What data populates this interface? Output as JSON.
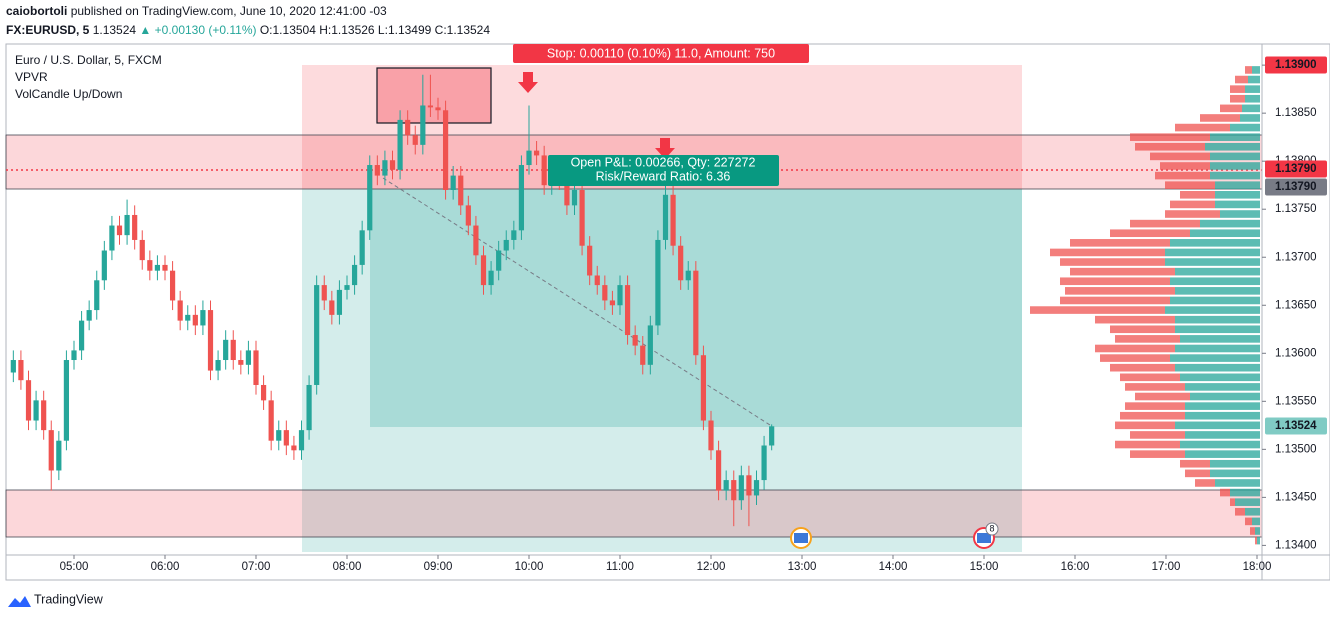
{
  "header": {
    "author": "caiobortoli",
    "published": "published on TradingView.com, June 10, 2020 12:41:00 -03",
    "symbol": "FX:EURUSD, 5",
    "last": 1.13524,
    "change": "▲ +0.00130 (+0.11%)",
    "ohlc": "O:1.13504 H:1.13526 L:1.13499 C:1.13524"
  },
  "legend": [
    "Euro / U.S. Dollar, 5, FXCM",
    "VPVR",
    "VolCandle Up/Down"
  ],
  "position": {
    "stop_label": "Stop: 0.00110 (0.10%) 11.0, Amount: 750",
    "pnl_label": "Open P&L: 0.00266, Qty: 227272",
    "rr_label": "Risk/Reward Ratio: 6.36"
  },
  "events": [
    "8"
  ],
  "price_labels": [
    {
      "label": "1.13900",
      "color": "#f23645"
    },
    {
      "label": "1.13790",
      "color": "#f23645"
    },
    {
      "label": "1.13790",
      "color": "#787b86"
    },
    {
      "label": "1.13524",
      "color": "#80cbc4"
    }
  ],
  "footer": {
    "brand": "TradingView"
  },
  "chart_data": {
    "type": "candlestick",
    "up_color": "#26a69a",
    "down_color": "#ef5350",
    "x": [
      "04:20",
      "04:25",
      "04:30",
      "04:35",
      "04:40",
      "04:45",
      "04:50",
      "04:55",
      "05:00",
      "05:05",
      "05:10",
      "05:15",
      "05:20",
      "05:25",
      "05:30",
      "05:35",
      "05:40",
      "05:45",
      "05:50",
      "05:55",
      "06:00",
      "06:05",
      "06:10",
      "06:15",
      "06:20",
      "06:25",
      "06:30",
      "06:35",
      "06:40",
      "06:45",
      "06:50",
      "06:55",
      "07:00",
      "07:05",
      "07:10",
      "07:15",
      "07:20",
      "07:25",
      "07:30",
      "07:35",
      "07:40",
      "07:45",
      "07:50",
      "07:55",
      "08:00",
      "08:05",
      "08:10",
      "08:15",
      "08:20",
      "08:25",
      "08:30",
      "08:35",
      "08:40",
      "08:45",
      "08:50",
      "08:55",
      "09:00",
      "09:05",
      "09:10",
      "09:15",
      "09:20",
      "09:25",
      "09:30",
      "09:35",
      "09:40",
      "09:45",
      "09:50",
      "09:55",
      "10:00",
      "10:05",
      "10:10",
      "10:15",
      "10:20",
      "10:25",
      "10:30",
      "10:35",
      "10:40",
      "10:45",
      "10:50",
      "10:55",
      "11:00",
      "11:05",
      "11:10",
      "11:15",
      "11:20",
      "11:25",
      "11:30",
      "11:35",
      "11:40",
      "11:45",
      "11:50",
      "11:55",
      "12:00",
      "12:05",
      "12:10",
      "12:15",
      "12:20",
      "12:25",
      "12:30",
      "12:35",
      "12:40"
    ],
    "open": [
      1.1358,
      1.13593,
      1.13572,
      1.1353,
      1.13551,
      1.1352,
      1.13478,
      1.13509,
      1.13593,
      1.13603,
      1.13634,
      1.13645,
      1.13676,
      1.13707,
      1.13733,
      1.13723,
      1.13744,
      1.13718,
      1.13697,
      1.13686,
      1.13692,
      1.13686,
      1.13655,
      1.13634,
      1.1364,
      1.13629,
      1.13645,
      1.13582,
      1.13593,
      1.13614,
      1.13593,
      1.13588,
      1.13603,
      1.13567,
      1.13551,
      1.13509,
      1.1352,
      1.13504,
      1.13499,
      1.1352,
      1.13567,
      1.13671,
      1.13655,
      1.1364,
      1.13666,
      1.13671,
      1.13692,
      1.13728,
      1.13796,
      1.13785,
      1.13801,
      1.13791,
      1.13843,
      1.13827,
      1.13817,
      1.13858,
      1.13856,
      1.13853,
      1.1377,
      1.13785,
      1.13754,
      1.13733,
      1.13702,
      1.13671,
      1.13686,
      1.13707,
      1.13718,
      1.13728,
      1.13796,
      1.13811,
      1.13806,
      1.13775,
      1.13796,
      1.1378,
      1.13754,
      1.1377,
      1.13712,
      1.13681,
      1.13671,
      1.13655,
      1.1365,
      1.13671,
      1.13619,
      1.13608,
      1.13588,
      1.13629,
      1.13718,
      1.13765,
      1.13712,
      1.13676,
      1.13686,
      1.13598,
      1.1353,
      1.13499,
      1.13457,
      1.13468,
      1.13447,
      1.13473,
      1.13452,
      1.13468,
      1.13504
    ],
    "high": [
      1.13603,
      1.13603,
      1.13582,
      1.13561,
      1.13561,
      1.1353,
      1.13519,
      1.13603,
      1.13613,
      1.13644,
      1.13655,
      1.13686,
      1.13717,
      1.13743,
      1.13743,
      1.1376,
      1.13754,
      1.13728,
      1.13707,
      1.13702,
      1.13702,
      1.13696,
      1.13665,
      1.1365,
      1.1365,
      1.13655,
      1.13655,
      1.13603,
      1.13624,
      1.13624,
      1.13603,
      1.13613,
      1.13613,
      1.13577,
      1.13561,
      1.1353,
      1.1353,
      1.13514,
      1.1353,
      1.13577,
      1.13681,
      1.13681,
      1.13665,
      1.13676,
      1.13681,
      1.13702,
      1.13738,
      1.13806,
      1.13806,
      1.13811,
      1.13811,
      1.13853,
      1.13853,
      1.13837,
      1.1389,
      1.1389,
      1.13866,
      1.13863,
      1.13795,
      1.13795,
      1.13764,
      1.13743,
      1.13712,
      1.13696,
      1.13717,
      1.13728,
      1.13738,
      1.13806,
      1.13858,
      1.13821,
      1.13816,
      1.13806,
      1.13806,
      1.1379,
      1.1378,
      1.1378,
      1.13722,
      1.13691,
      1.13681,
      1.13665,
      1.13681,
      1.13681,
      1.13629,
      1.13618,
      1.13639,
      1.13728,
      1.13775,
      1.13775,
      1.13722,
      1.13696,
      1.13696,
      1.13608,
      1.1354,
      1.13509,
      1.13478,
      1.13478,
      1.13483,
      1.13483,
      1.13478,
      1.13514,
      1.13526
    ],
    "low": [
      1.1357,
      1.13562,
      1.1352,
      1.1352,
      1.1351,
      1.13457,
      1.13468,
      1.13499,
      1.13583,
      1.13593,
      1.13624,
      1.13635,
      1.13666,
      1.13697,
      1.13713,
      1.13713,
      1.13708,
      1.13687,
      1.13676,
      1.13676,
      1.13676,
      1.13645,
      1.13624,
      1.13624,
      1.13619,
      1.13619,
      1.13572,
      1.13572,
      1.13583,
      1.13583,
      1.13578,
      1.13578,
      1.13557,
      1.13541,
      1.13499,
      1.13499,
      1.13494,
      1.13489,
      1.13489,
      1.1351,
      1.13557,
      1.13645,
      1.1363,
      1.1363,
      1.13656,
      1.13661,
      1.13682,
      1.13718,
      1.13775,
      1.13775,
      1.13781,
      1.13781,
      1.13817,
      1.13807,
      1.13807,
      1.13846,
      1.13843,
      1.1376,
      1.1376,
      1.13744,
      1.13723,
      1.13692,
      1.13661,
      1.13661,
      1.13676,
      1.13697,
      1.13708,
      1.13718,
      1.13786,
      1.13796,
      1.13765,
      1.13765,
      1.1377,
      1.13744,
      1.13744,
      1.13702,
      1.13671,
      1.13661,
      1.13645,
      1.1364,
      1.1364,
      1.13609,
      1.13598,
      1.13578,
      1.13578,
      1.13619,
      1.13708,
      1.13702,
      1.13666,
      1.13666,
      1.13588,
      1.1352,
      1.13489,
      1.13447,
      1.13447,
      1.1342,
      1.13437,
      1.1342,
      1.13442,
      1.13458,
      1.13499
    ],
    "close": [
      1.13593,
      1.13572,
      1.1353,
      1.13551,
      1.1352,
      1.13478,
      1.13509,
      1.13593,
      1.13603,
      1.13634,
      1.13645,
      1.13676,
      1.13707,
      1.13733,
      1.13723,
      1.13744,
      1.13718,
      1.13697,
      1.13686,
      1.13692,
      1.13686,
      1.13655,
      1.13634,
      1.1364,
      1.13629,
      1.13645,
      1.13582,
      1.13593,
      1.13614,
      1.13593,
      1.13588,
      1.13603,
      1.13567,
      1.13551,
      1.13509,
      1.1352,
      1.13504,
      1.13499,
      1.1352,
      1.13567,
      1.13671,
      1.13655,
      1.1364,
      1.13666,
      1.13671,
      1.13692,
      1.13728,
      1.13796,
      1.13785,
      1.13801,
      1.13791,
      1.13843,
      1.13827,
      1.13817,
      1.13858,
      1.13856,
      1.13853,
      1.1377,
      1.13785,
      1.13754,
      1.13733,
      1.13702,
      1.13671,
      1.13686,
      1.13707,
      1.13718,
      1.13728,
      1.13796,
      1.13811,
      1.13806,
      1.13775,
      1.13796,
      1.1378,
      1.13754,
      1.1377,
      1.13712,
      1.13681,
      1.13671,
      1.13655,
      1.1365,
      1.13671,
      1.13619,
      1.13608,
      1.13588,
      1.13629,
      1.13718,
      1.13765,
      1.13712,
      1.13676,
      1.13686,
      1.13598,
      1.1353,
      1.13499,
      1.13457,
      1.13468,
      1.13447,
      1.13473,
      1.13452,
      1.13468,
      1.13504,
      1.13524
    ],
    "xticks": [
      "05:00",
      "06:00",
      "07:00",
      "08:00",
      "09:00",
      "10:00",
      "11:00",
      "12:00",
      "13:00",
      "14:00",
      "15:00",
      "16:00",
      "17:00",
      "18:00"
    ],
    "ylim": [
      1.1339,
      1.13922
    ],
    "yticks": [
      {
        "value": 1.134,
        "label": "1.13400"
      },
      {
        "value": 1.1345,
        "label": "1.13450"
      },
      {
        "value": 1.135,
        "label": "1.13500"
      },
      {
        "value": 1.1355,
        "label": "1.13550"
      },
      {
        "value": 1.136,
        "label": "1.13600"
      },
      {
        "value": 1.1365,
        "label": "1.13650"
      },
      {
        "value": 1.137,
        "label": "1.13700"
      },
      {
        "value": 1.1375,
        "label": "1.13750"
      },
      {
        "value": 1.138,
        "label": "1.13800"
      },
      {
        "value": 1.1385,
        "label": "1.13850"
      },
      {
        "value": 1.139,
        "label": "1.13900"
      }
    ],
    "volume_profile": {
      "up_color": "#26a69a",
      "down_color": "#ef5350",
      "prices": [
        1.13895,
        1.13885,
        1.13875,
        1.13865,
        1.13855,
        1.13845,
        1.13835,
        1.13825,
        1.13815,
        1.13805,
        1.13795,
        1.13785,
        1.13775,
        1.13765,
        1.13755,
        1.13745,
        1.13735,
        1.13725,
        1.13715,
        1.13705,
        1.13695,
        1.13685,
        1.13675,
        1.13665,
        1.13655,
        1.13645,
        1.13635,
        1.13625,
        1.13615,
        1.13605,
        1.13595,
        1.13585,
        1.13575,
        1.13565,
        1.13555,
        1.13545,
        1.13535,
        1.13525,
        1.13515,
        1.13505,
        1.13495,
        1.13485,
        1.13475,
        1.13465,
        1.13455,
        1.13445,
        1.13435,
        1.13425,
        1.13415,
        1.13405
      ],
      "up": [
        8,
        12,
        15,
        15,
        18,
        20,
        30,
        50,
        55,
        50,
        50,
        50,
        45,
        45,
        45,
        40,
        60,
        70,
        90,
        95,
        95,
        85,
        90,
        85,
        90,
        95,
        85,
        85,
        80,
        85,
        90,
        85,
        80,
        75,
        70,
        75,
        75,
        85,
        75,
        80,
        75,
        50,
        50,
        45,
        30,
        25,
        15,
        8,
        5,
        3
      ],
      "down": [
        7,
        13,
        15,
        15,
        22,
        40,
        55,
        80,
        70,
        60,
        50,
        55,
        50,
        35,
        45,
        55,
        70,
        80,
        100,
        115,
        105,
        105,
        110,
        110,
        110,
        135,
        80,
        65,
        65,
        80,
        70,
        65,
        60,
        60,
        55,
        60,
        65,
        60,
        55,
        65,
        55,
        30,
        25,
        20,
        10,
        5,
        10,
        7,
        5,
        2
      ]
    }
  }
}
